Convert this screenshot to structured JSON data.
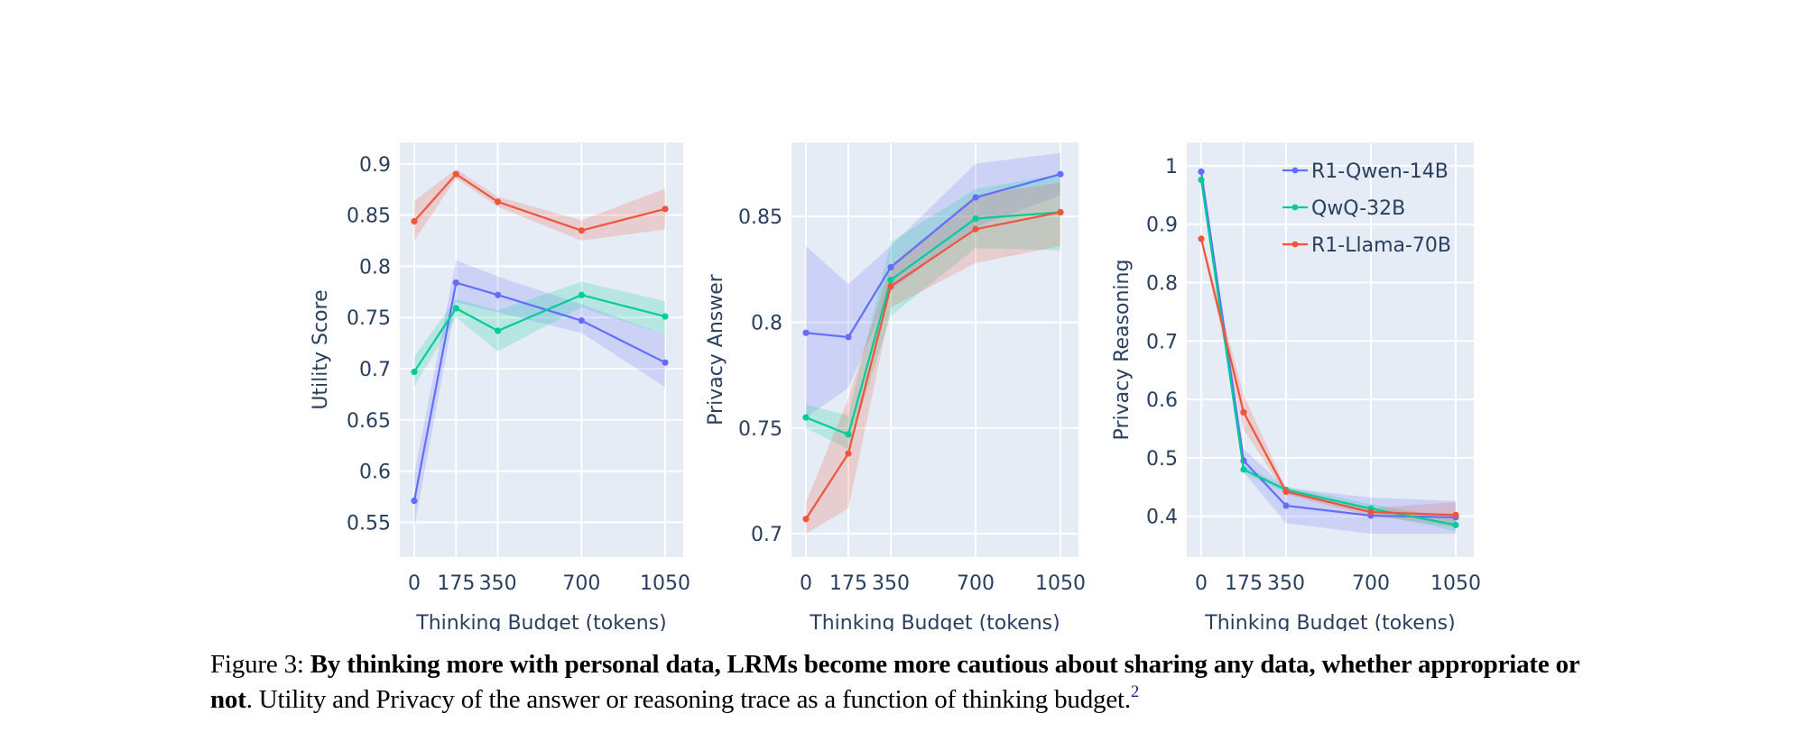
{
  "figure": {
    "colors": {
      "plot_bg": "#e5ecf6",
      "grid": "#ffffff",
      "text": "#2a3f5f"
    }
  },
  "chart_data": [
    {
      "type": "line",
      "title": "",
      "xlabel": "Thinking Budget (tokens)",
      "ylabel": "Utility Score",
      "x": [
        0,
        175,
        350,
        700,
        1050
      ],
      "xticks": [
        0,
        175,
        350,
        700,
        1050
      ],
      "xlim": [
        -60,
        1070
      ],
      "ylim": [
        0.516,
        0.921
      ],
      "yticks": [
        0.55,
        0.6,
        0.65,
        0.7,
        0.75,
        0.8,
        0.85,
        0.9
      ],
      "ytick_labels": [
        "0.55",
        "0.6",
        "0.65",
        "0.7",
        "0.75",
        "0.8",
        "0.85",
        "0.9"
      ],
      "grid": true,
      "legend": null,
      "series": [
        {
          "name": "R1-Qwen-14B",
          "color": "#636efa",
          "values": [
            0.571,
            0.784,
            0.772,
            0.747,
            0.706
          ],
          "lower": [
            0.545,
            0.765,
            0.755,
            0.735,
            0.682
          ],
          "upper": [
            0.597,
            0.806,
            0.79,
            0.763,
            0.733
          ]
        },
        {
          "name": "QwQ-32B",
          "color": "#00cc96",
          "values": [
            0.697,
            0.759,
            0.737,
            0.772,
            0.751
          ],
          "lower": [
            0.683,
            0.75,
            0.717,
            0.76,
            0.733
          ],
          "upper": [
            0.712,
            0.768,
            0.757,
            0.785,
            0.766
          ]
        },
        {
          "name": "R1-Llama-70B",
          "color": "#ef553b",
          "values": [
            0.844,
            0.89,
            0.863,
            0.835,
            0.856
          ],
          "lower": [
            0.825,
            0.886,
            0.858,
            0.825,
            0.836
          ],
          "upper": [
            0.864,
            0.895,
            0.868,
            0.845,
            0.876
          ]
        }
      ]
    },
    {
      "type": "line",
      "title": "",
      "xlabel": "Thinking Budget (tokens)",
      "ylabel": "Privacy Answer",
      "x": [
        0,
        175,
        350,
        700,
        1050
      ],
      "xticks": [
        0,
        175,
        350,
        700,
        1050
      ],
      "xlim": [
        -60,
        1070
      ],
      "ylim": [
        0.689,
        0.885
      ],
      "yticks": [
        0.7,
        0.75,
        0.8,
        0.85
      ],
      "ytick_labels": [
        "0.7",
        "0.75",
        "0.8",
        "0.85"
      ],
      "grid": true,
      "legend": null,
      "series": [
        {
          "name": "R1-Qwen-14B",
          "color": "#636efa",
          "values": [
            0.795,
            0.793,
            0.826,
            0.859,
            0.87
          ],
          "lower": [
            0.755,
            0.769,
            0.815,
            0.845,
            0.86
          ],
          "upper": [
            0.836,
            0.818,
            0.836,
            0.875,
            0.88
          ]
        },
        {
          "name": "QwQ-32B",
          "color": "#00cc96",
          "values": [
            0.755,
            0.747,
            0.82,
            0.849,
            0.852
          ],
          "lower": [
            0.75,
            0.74,
            0.803,
            0.835,
            0.834
          ],
          "upper": [
            0.761,
            0.756,
            0.838,
            0.863,
            0.87
          ]
        },
        {
          "name": "R1-Llama-70B",
          "color": "#ef553b",
          "values": [
            0.707,
            0.738,
            0.817,
            0.844,
            0.852
          ],
          "lower": [
            0.7,
            0.712,
            0.807,
            0.828,
            0.836
          ],
          "upper": [
            0.715,
            0.764,
            0.827,
            0.86,
            0.866
          ]
        }
      ]
    },
    {
      "type": "line",
      "title": "",
      "xlabel": "Thinking Budget (tokens)",
      "ylabel": "Privacy Reasoning",
      "x": [
        0,
        175,
        350,
        700,
        1050
      ],
      "xticks": [
        0,
        175,
        350,
        700,
        1050
      ],
      "xlim": [
        -60,
        1070
      ],
      "ylim": [
        0.33,
        1.04
      ],
      "yticks": [
        0.4,
        0.5,
        0.6,
        0.7,
        0.8,
        0.9,
        1
      ],
      "ytick_labels": [
        "0.4",
        "0.5",
        "0.6",
        "0.7",
        "0.8",
        "0.9",
        "1"
      ],
      "grid": true,
      "legend": "top-right",
      "series": [
        {
          "name": "R1-Qwen-14B",
          "color": "#636efa",
          "values": [
            0.99,
            0.495,
            0.418,
            0.401,
            0.398
          ],
          "lower": [
            0.985,
            0.475,
            0.388,
            0.37,
            0.37
          ],
          "upper": [
            0.995,
            0.515,
            0.448,
            0.432,
            0.426
          ]
        },
        {
          "name": "QwQ-32B",
          "color": "#00cc96",
          "values": [
            0.976,
            0.48,
            0.445,
            0.413,
            0.385
          ],
          "lower": [
            0.972,
            0.474,
            0.439,
            0.405,
            0.375
          ],
          "upper": [
            0.98,
            0.486,
            0.451,
            0.421,
            0.395
          ]
        },
        {
          "name": "R1-Llama-70B",
          "color": "#ef553b",
          "values": [
            0.875,
            0.578,
            0.442,
            0.407,
            0.402
          ],
          "lower": [
            0.87,
            0.548,
            0.437,
            0.4,
            0.382
          ],
          "upper": [
            0.88,
            0.608,
            0.448,
            0.414,
            0.424
          ]
        }
      ]
    }
  ],
  "caption": {
    "label": "Figure 3: ",
    "bold": "By thinking more with personal data, LRMs become more cautious about sharing any data, whether appropriate or not",
    "text": ". Utility and Privacy of the answer or reasoning trace as a function of thinking budget.",
    "footnote": "2"
  }
}
